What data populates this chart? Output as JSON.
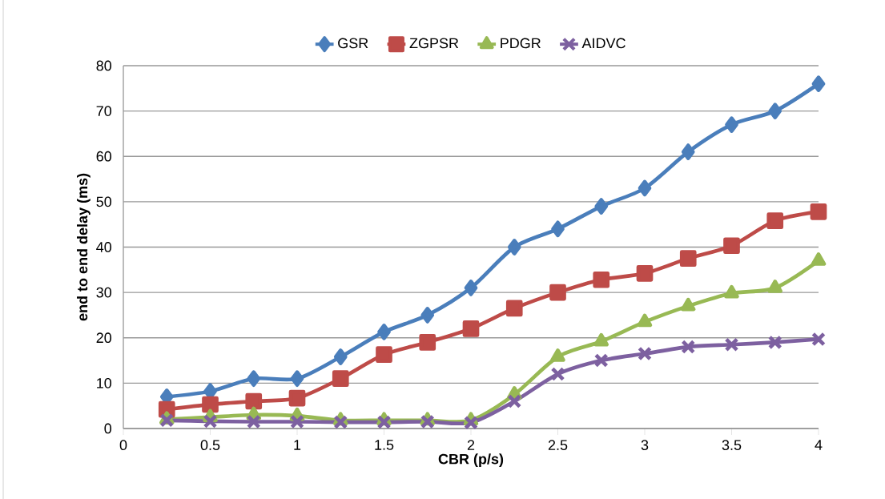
{
  "chart_data": {
    "type": "line",
    "xlabel": "CBR (p/s)",
    "ylabel": "end to end delay (ms)",
    "x": [
      0.25,
      0.5,
      0.75,
      1,
      1.25,
      1.5,
      1.75,
      2,
      2.25,
      2.5,
      2.75,
      3,
      3.25,
      3.5,
      3.75,
      4
    ],
    "series": [
      {
        "name": "GSR",
        "color": "#4a7ebb",
        "marker": "diamond",
        "values": [
          7,
          8.2,
          11,
          11,
          15.8,
          21.3,
          25,
          31,
          40,
          44,
          49,
          53,
          61,
          67,
          70,
          76
        ]
      },
      {
        "name": "ZGPSR",
        "color": "#be4b48",
        "marker": "square",
        "values": [
          4.2,
          5.3,
          6,
          6.7,
          11,
          16.3,
          19,
          22,
          26.5,
          30,
          32.8,
          34.2,
          37.5,
          40.3,
          45.8,
          47.8
        ]
      },
      {
        "name": "PDGR",
        "color": "#98b954",
        "marker": "triangle",
        "values": [
          2,
          2.5,
          3,
          2.8,
          1.8,
          1.8,
          1.8,
          1.8,
          7.5,
          15.8,
          19.2,
          23.5,
          27,
          29.8,
          31,
          37
        ]
      },
      {
        "name": "AIDVC",
        "color": "#7d60a0",
        "marker": "cross",
        "values": [
          1.8,
          1.6,
          1.5,
          1.5,
          1.4,
          1.4,
          1.5,
          1.3,
          6,
          12,
          15,
          16.5,
          18,
          18.5,
          19,
          19.7
        ]
      }
    ],
    "xlim": [
      0,
      4
    ],
    "xticks": [
      0,
      0.5,
      1,
      1.5,
      2,
      2.5,
      3,
      3.5,
      4
    ],
    "ylim": [
      0,
      80
    ],
    "yticks": [
      0,
      10,
      20,
      30,
      40,
      50,
      60,
      70,
      80
    ],
    "grid": "y",
    "legend": "top"
  }
}
